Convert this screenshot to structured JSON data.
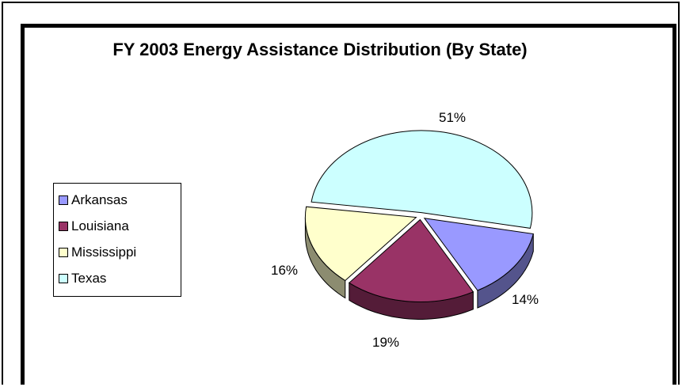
{
  "chart_data": {
    "type": "pie",
    "title": "FY 2003 Energy Assistance Distribution (By State)",
    "categories": [
      "Arkansas",
      "Louisiana",
      "Mississippi",
      "Texas"
    ],
    "values": [
      14,
      19,
      16,
      51
    ],
    "value_labels": [
      "14%",
      "19%",
      "16%",
      "51%"
    ],
    "three_d": true,
    "exploded": true,
    "legend_position": "left",
    "colors": {
      "Arkansas": "#9999ff",
      "Louisiana": "#993366",
      "Mississippi": "#ffffcc",
      "Texas": "#ccffff"
    }
  }
}
